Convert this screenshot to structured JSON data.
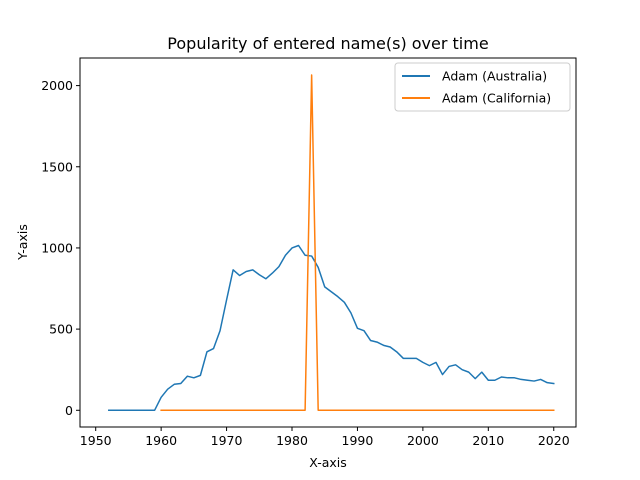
{
  "chart_data": {
    "type": "line",
    "title": "Popularity of entered name(s) over time",
    "xlabel": "X-axis",
    "ylabel": "Y-axis",
    "xlim": [
      1947.6,
      2023.4
    ],
    "ylim": [
      -103,
      2170
    ],
    "xticks": [
      1950,
      1960,
      1970,
      1980,
      1990,
      2000,
      2010,
      2020
    ],
    "yticks": [
      0,
      500,
      1000,
      1500,
      2000
    ],
    "grid": false,
    "legend_position": "top-right",
    "series": [
      {
        "name": "Adam (Australia)",
        "color": "#1f77b4",
        "x": [
          1952,
          1953,
          1954,
          1955,
          1956,
          1957,
          1958,
          1959,
          1960,
          1961,
          1962,
          1963,
          1964,
          1965,
          1966,
          1967,
          1968,
          1969,
          1970,
          1971,
          1972,
          1973,
          1974,
          1975,
          1976,
          1977,
          1978,
          1979,
          1980,
          1981,
          1982,
          1983,
          1984,
          1985,
          1986,
          1987,
          1988,
          1989,
          1990,
          1991,
          1992,
          1993,
          1994,
          1995,
          1996,
          1997,
          1998,
          1999,
          2000,
          2001,
          2002,
          2003,
          2004,
          2005,
          2006,
          2007,
          2008,
          2009,
          2010,
          2011,
          2012,
          2013,
          2014,
          2015,
          2016,
          2017,
          2018,
          2019,
          2020
        ],
        "y": [
          0,
          0,
          0,
          0,
          0,
          0,
          0,
          0,
          80,
          130,
          160,
          165,
          210,
          200,
          215,
          360,
          380,
          490,
          680,
          865,
          830,
          855,
          865,
          835,
          810,
          845,
          885,
          955,
          1000,
          1015,
          955,
          950,
          880,
          760,
          730,
          700,
          665,
          600,
          505,
          490,
          430,
          420,
          400,
          390,
          360,
          320,
          320,
          320,
          295,
          275,
          295,
          220,
          270,
          280,
          250,
          235,
          195,
          235,
          185,
          185,
          205,
          200,
          200,
          190,
          185,
          180,
          190,
          170,
          165
        ]
      },
      {
        "name": "Adam (California)",
        "color": "#ff7f0e",
        "x": [
          1960,
          1982,
          1983,
          1984,
          2020
        ],
        "y": [
          0,
          0,
          2065,
          0,
          0
        ]
      }
    ]
  }
}
